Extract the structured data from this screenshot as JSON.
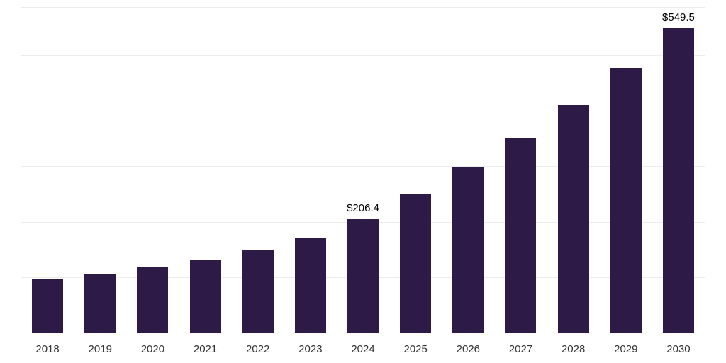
{
  "chart_data": {
    "type": "bar",
    "title": "",
    "xlabel": "",
    "ylabel": "",
    "categories": [
      "2018",
      "2019",
      "2020",
      "2021",
      "2022",
      "2023",
      "2024",
      "2025",
      "2026",
      "2027",
      "2028",
      "2029",
      "2030"
    ],
    "values": [
      98,
      108,
      119,
      132,
      150,
      172,
      206.4,
      250,
      299,
      352,
      412,
      478,
      549.5
    ],
    "point_labels": [
      "",
      "",
      "",
      "",
      "",
      "",
      "$206.4",
      "",
      "",
      "",
      "",
      "",
      "$549.5"
    ],
    "ylim": [
      0,
      588
    ],
    "gridlines": [
      100,
      200,
      300,
      400,
      500
    ],
    "grid_on": true,
    "legend_position": "none",
    "colors": {
      "bar": "#2e1a47",
      "grid": "#ececec",
      "axis_line": "#e0e0e0",
      "value_label": "#000000",
      "tick_label": "#333333",
      "background": "#ffffff"
    }
  }
}
